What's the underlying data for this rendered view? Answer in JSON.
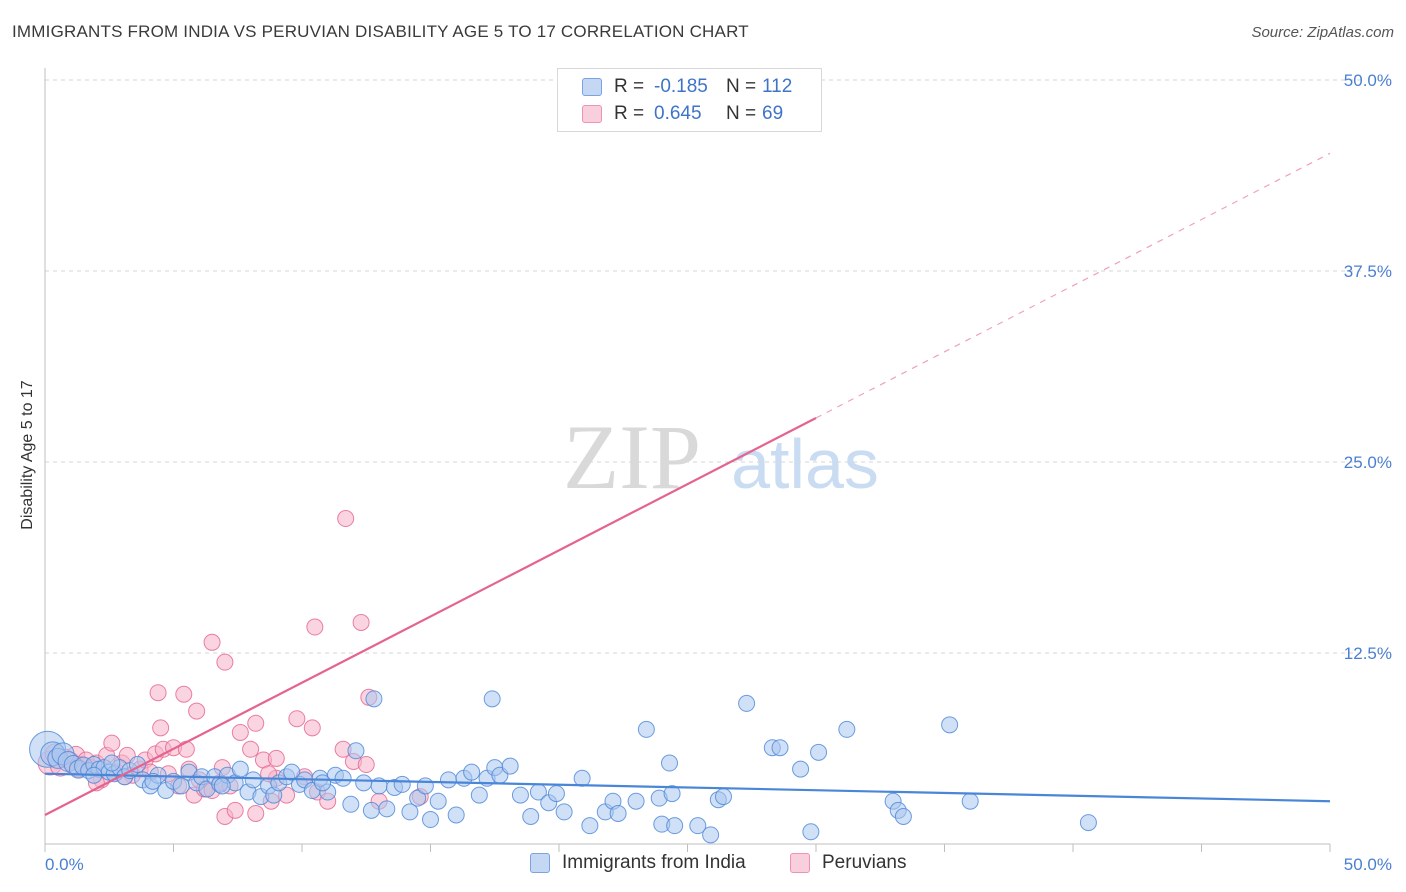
{
  "title": "IMMIGRANTS FROM INDIA VS PERUVIAN DISABILITY AGE 5 TO 17 CORRELATION CHART",
  "source": "Source: ZipAtlas.com",
  "colors": {
    "blue": "#4a86d8",
    "blue_fill": "#a9c6ef",
    "pink": "#e5638f",
    "pink_fill": "#f5b3c9",
    "tick_text": "#4a7fd0",
    "grid": "#d6d6d6"
  },
  "legend": {
    "rows": [
      {
        "series": "blue",
        "r_label": "R =",
        "r_value": "-0.185",
        "n_label": "N =",
        "n_value": "112"
      },
      {
        "series": "pink",
        "r_label": "R =",
        "r_value": "0.645",
        "n_label": "N =",
        "n_value": "69"
      }
    ]
  },
  "watermark": {
    "zip": "ZIP",
    "atlas": "atlas"
  },
  "chart_data": {
    "type": "scatter",
    "title": "IMMIGRANTS FROM INDIA VS PERUVIAN DISABILITY AGE 5 TO 17 CORRELATION CHART",
    "xlabel": "",
    "ylabel": "Disability Age 5 to 17",
    "xlim": [
      0,
      50
    ],
    "ylim": [
      0,
      50
    ],
    "x_tick_labels": [
      "0.0%",
      "50.0%"
    ],
    "y_ticks": [
      12.5,
      25.0,
      37.5,
      50.0
    ],
    "y_tick_labels": [
      "12.5%",
      "25.0%",
      "37.5%",
      "50.0%"
    ],
    "grid": true,
    "series": [
      {
        "name": "Immigrants from India",
        "color": "blue",
        "r": -0.185,
        "n": 112,
        "trend": {
          "x": [
            0,
            50
          ],
          "y": [
            4.6,
            2.8
          ],
          "dashed_from": 50
        },
        "points": [
          [
            0.1,
            6.2,
            18
          ],
          [
            0.3,
            5.9,
            12
          ],
          [
            0.5,
            5.6,
            10
          ],
          [
            0.7,
            5.9,
            11
          ],
          [
            0.9,
            5.4,
            10
          ],
          [
            1.1,
            5.2,
            9
          ],
          [
            1.3,
            4.9,
            9
          ],
          [
            1.5,
            5.1,
            9
          ],
          [
            1.7,
            4.8,
            8
          ],
          [
            1.9,
            5.2,
            8
          ],
          [
            2.1,
            4.9,
            8
          ],
          [
            2.3,
            5.0,
            8
          ],
          [
            2.5,
            4.7,
            8
          ],
          [
            2.7,
            4.6,
            8
          ],
          [
            2.9,
            5.0,
            8
          ],
          [
            3.1,
            4.4,
            8
          ],
          [
            3.3,
            4.8,
            8
          ],
          [
            3.6,
            5.2,
            8
          ],
          [
            3.8,
            4.2,
            8
          ],
          [
            4.1,
            3.8,
            8
          ],
          [
            4.4,
            4.5,
            8
          ],
          [
            4.7,
            3.5,
            8
          ],
          [
            5.0,
            4.1,
            8
          ],
          [
            5.3,
            3.8,
            8
          ],
          [
            5.6,
            4.7,
            8
          ],
          [
            5.9,
            4.0,
            8
          ],
          [
            6.1,
            4.4,
            8
          ],
          [
            6.3,
            3.6,
            8
          ],
          [
            6.6,
            4.4,
            8
          ],
          [
            6.8,
            3.9,
            8
          ],
          [
            7.1,
            4.5,
            8
          ],
          [
            7.4,
            4.0,
            8
          ],
          [
            7.6,
            4.9,
            8
          ],
          [
            7.9,
            3.4,
            8
          ],
          [
            8.1,
            4.2,
            8
          ],
          [
            8.4,
            3.1,
            8
          ],
          [
            8.7,
            3.8,
            8
          ],
          [
            8.9,
            3.2,
            8
          ],
          [
            9.1,
            4.0,
            8
          ],
          [
            9.4,
            4.4,
            8
          ],
          [
            9.6,
            4.7,
            8
          ],
          [
            9.9,
            3.9,
            8
          ],
          [
            10.1,
            4.2,
            8
          ],
          [
            10.4,
            3.5,
            8
          ],
          [
            10.7,
            4.3,
            8
          ],
          [
            11.0,
            3.4,
            8
          ],
          [
            11.3,
            4.5,
            8
          ],
          [
            11.6,
            4.3,
            8
          ],
          [
            11.9,
            2.6,
            8
          ],
          [
            12.1,
            6.1,
            8
          ],
          [
            12.4,
            4.0,
            8
          ],
          [
            12.7,
            2.2,
            8
          ],
          [
            13.0,
            3.8,
            8
          ],
          [
            13.3,
            2.3,
            8
          ],
          [
            13.6,
            3.7,
            8
          ],
          [
            13.9,
            3.9,
            8
          ],
          [
            14.2,
            2.1,
            8
          ],
          [
            14.5,
            3.0,
            8
          ],
          [
            14.8,
            3.8,
            8
          ],
          [
            15.0,
            1.6,
            8
          ],
          [
            15.3,
            2.8,
            8
          ],
          [
            15.7,
            4.2,
            8
          ],
          [
            16.0,
            1.9,
            8
          ],
          [
            16.3,
            4.3,
            8
          ],
          [
            16.6,
            4.7,
            8
          ],
          [
            16.9,
            3.2,
            8
          ],
          [
            17.2,
            4.3,
            8
          ],
          [
            17.5,
            5.0,
            8
          ],
          [
            17.7,
            4.5,
            8
          ],
          [
            18.1,
            5.1,
            8
          ],
          [
            18.5,
            3.2,
            8
          ],
          [
            18.9,
            1.8,
            8
          ],
          [
            19.2,
            3.4,
            8
          ],
          [
            19.6,
            2.7,
            8
          ],
          [
            19.9,
            3.3,
            8
          ],
          [
            20.2,
            2.1,
            8
          ],
          [
            20.9,
            4.3,
            8
          ],
          [
            21.2,
            1.2,
            8
          ],
          [
            21.8,
            2.1,
            8
          ],
          [
            22.1,
            2.8,
            8
          ],
          [
            22.3,
            2.0,
            8
          ],
          [
            23.0,
            2.8,
            8
          ],
          [
            24.0,
            1.3,
            8
          ],
          [
            24.5,
            1.2,
            8
          ],
          [
            25.4,
            1.2,
            8
          ],
          [
            25.9,
            0.6,
            8
          ],
          [
            26.2,
            2.9,
            8
          ],
          [
            23.9,
            3.0,
            8
          ],
          [
            17.4,
            9.5,
            8
          ],
          [
            12.8,
            9.5,
            8
          ],
          [
            23.4,
            7.5,
            8
          ],
          [
            24.3,
            5.3,
            8
          ],
          [
            24.4,
            3.3,
            8
          ],
          [
            26.4,
            3.1,
            8
          ],
          [
            27.3,
            9.2,
            8
          ],
          [
            28.3,
            6.3,
            8
          ],
          [
            28.6,
            6.3,
            8
          ],
          [
            29.4,
            4.9,
            8
          ],
          [
            30.1,
            6.0,
            8
          ],
          [
            29.8,
            0.8,
            8
          ],
          [
            31.2,
            7.5,
            8
          ],
          [
            33.0,
            2.8,
            8
          ],
          [
            33.2,
            2.2,
            8
          ],
          [
            33.4,
            1.8,
            8
          ],
          [
            35.2,
            7.8,
            8
          ],
          [
            36.0,
            2.8,
            8
          ],
          [
            40.6,
            1.4,
            8
          ],
          [
            6.9,
            3.8,
            8
          ],
          [
            4.2,
            4.1,
            8
          ],
          [
            1.9,
            4.5,
            8
          ],
          [
            2.6,
            5.3,
            8
          ],
          [
            10.8,
            4.0,
            8
          ]
        ]
      },
      {
        "name": "Peruvians",
        "color": "pink",
        "r": 0.645,
        "n": 69,
        "trend": {
          "x": [
            0,
            50
          ],
          "y": [
            1.9,
            45.2
          ],
          "dashed_from": 30
        },
        "points": [
          [
            0.2,
            5.3,
            12
          ],
          [
            0.4,
            5.9,
            10
          ],
          [
            0.6,
            5.1,
            10
          ],
          [
            0.8,
            5.6,
            9
          ],
          [
            1.0,
            5.4,
            9
          ],
          [
            1.2,
            5.8,
            9
          ],
          [
            1.4,
            5.2,
            8
          ],
          [
            1.6,
            5.5,
            8
          ],
          [
            1.8,
            5.0,
            8
          ],
          [
            2.0,
            5.3,
            8
          ],
          [
            2.2,
            4.2,
            8
          ],
          [
            2.4,
            5.8,
            8
          ],
          [
            2.6,
            6.6,
            8
          ],
          [
            2.8,
            4.7,
            8
          ],
          [
            3.0,
            5.3,
            8
          ],
          [
            3.2,
            5.8,
            8
          ],
          [
            3.4,
            4.5,
            8
          ],
          [
            3.7,
            4.9,
            8
          ],
          [
            3.9,
            5.5,
            8
          ],
          [
            4.1,
            4.7,
            8
          ],
          [
            4.3,
            5.9,
            8
          ],
          [
            4.5,
            7.6,
            8
          ],
          [
            4.6,
            6.2,
            8
          ],
          [
            4.8,
            4.6,
            8
          ],
          [
            5.0,
            6.3,
            8
          ],
          [
            5.2,
            3.8,
            8
          ],
          [
            5.5,
            6.2,
            8
          ],
          [
            5.8,
            3.2,
            8
          ],
          [
            6.0,
            4.2,
            8
          ],
          [
            6.2,
            3.6,
            8
          ],
          [
            6.5,
            3.5,
            8
          ],
          [
            6.8,
            4.0,
            8
          ],
          [
            7.0,
            1.8,
            8
          ],
          [
            7.2,
            3.8,
            8
          ],
          [
            7.4,
            2.2,
            8
          ],
          [
            7.6,
            7.3,
            8
          ],
          [
            8.0,
            6.2,
            8
          ],
          [
            8.2,
            2.0,
            8
          ],
          [
            8.5,
            5.5,
            8
          ],
          [
            8.8,
            2.8,
            8
          ],
          [
            9.0,
            5.6,
            8
          ],
          [
            9.4,
            3.2,
            8
          ],
          [
            9.8,
            8.2,
            8
          ],
          [
            10.1,
            4.4,
            8
          ],
          [
            10.4,
            7.6,
            8
          ],
          [
            10.6,
            3.4,
            8
          ],
          [
            11.0,
            2.8,
            8
          ],
          [
            11.6,
            6.2,
            8
          ],
          [
            12.0,
            5.4,
            8
          ],
          [
            12.5,
            5.2,
            8
          ],
          [
            13.0,
            2.8,
            8
          ],
          [
            10.5,
            14.2,
            8
          ],
          [
            11.7,
            21.3,
            8
          ],
          [
            12.3,
            14.5,
            8
          ],
          [
            12.6,
            9.6,
            8
          ],
          [
            6.5,
            13.2,
            8
          ],
          [
            7.0,
            11.9,
            8
          ],
          [
            4.4,
            9.9,
            8
          ],
          [
            5.4,
            9.8,
            8
          ],
          [
            5.9,
            8.7,
            8
          ],
          [
            8.2,
            7.9,
            8
          ],
          [
            9.0,
            4.3,
            8
          ],
          [
            14.6,
            3.1,
            8
          ],
          [
            1.3,
            4.9,
            8
          ],
          [
            3.1,
            4.4,
            8
          ],
          [
            5.6,
            4.9,
            8
          ],
          [
            6.9,
            5.0,
            8
          ],
          [
            2.0,
            4.0,
            8
          ],
          [
            8.7,
            4.6,
            8
          ]
        ]
      }
    ]
  },
  "bottom_legend": {
    "items": [
      {
        "label": "Immigrants from India",
        "color": "blue"
      },
      {
        "label": "Peruvians",
        "color": "pink"
      }
    ]
  }
}
